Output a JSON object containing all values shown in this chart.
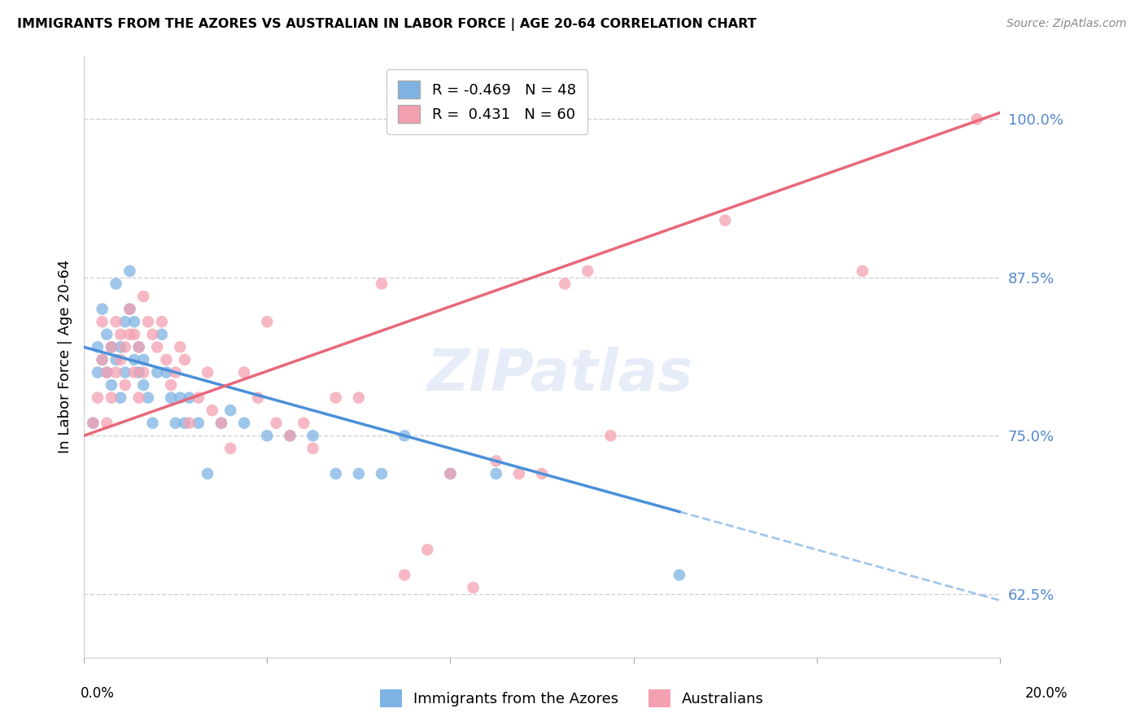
{
  "title": "IMMIGRANTS FROM THE AZORES VS AUSTRALIAN IN LABOR FORCE | AGE 20-64 CORRELATION CHART",
  "source": "Source: ZipAtlas.com",
  "ylabel_label": "In Labor Force | Age 20-64",
  "yticks": [
    0.625,
    0.75,
    0.875,
    1.0
  ],
  "ytick_labels": [
    "62.5%",
    "75.0%",
    "87.5%",
    "100.0%"
  ],
  "xlim": [
    0.0,
    0.2
  ],
  "ylim": [
    0.575,
    1.05
  ],
  "blue_R": -0.469,
  "blue_N": 48,
  "pink_R": 0.431,
  "pink_N": 60,
  "blue_color": "#7eb3e3",
  "pink_color": "#f4a0b0",
  "blue_line_color": "#4a90d9",
  "pink_line_color": "#e8687a",
  "legend_label_blue": "Immigrants from the Azores",
  "legend_label_pink": "Australians",
  "watermark": "ZIPatlas",
  "blue_line_x0": 0.0,
  "blue_line_y0": 0.82,
  "blue_line_x1": 0.13,
  "blue_line_y1": 0.69,
  "pink_line_x0": 0.0,
  "pink_line_y0": 0.75,
  "pink_line_x1": 0.2,
  "pink_line_y1": 1.005,
  "blue_scatter_x": [
    0.002,
    0.003,
    0.003,
    0.004,
    0.004,
    0.005,
    0.005,
    0.006,
    0.006,
    0.007,
    0.007,
    0.008,
    0.008,
    0.009,
    0.009,
    0.01,
    0.01,
    0.011,
    0.011,
    0.012,
    0.012,
    0.013,
    0.013,
    0.014,
    0.015,
    0.016,
    0.017,
    0.018,
    0.019,
    0.02,
    0.021,
    0.022,
    0.023,
    0.025,
    0.027,
    0.03,
    0.032,
    0.035,
    0.04,
    0.045,
    0.05,
    0.055,
    0.06,
    0.065,
    0.07,
    0.08,
    0.09,
    0.13
  ],
  "blue_scatter_y": [
    0.76,
    0.8,
    0.82,
    0.81,
    0.85,
    0.8,
    0.83,
    0.79,
    0.82,
    0.81,
    0.87,
    0.78,
    0.82,
    0.8,
    0.84,
    0.85,
    0.88,
    0.84,
    0.81,
    0.8,
    0.82,
    0.79,
    0.81,
    0.78,
    0.76,
    0.8,
    0.83,
    0.8,
    0.78,
    0.76,
    0.78,
    0.76,
    0.78,
    0.76,
    0.72,
    0.76,
    0.77,
    0.76,
    0.75,
    0.75,
    0.75,
    0.72,
    0.72,
    0.72,
    0.75,
    0.72,
    0.72,
    0.64
  ],
  "pink_scatter_x": [
    0.002,
    0.003,
    0.004,
    0.004,
    0.005,
    0.005,
    0.006,
    0.006,
    0.007,
    0.007,
    0.008,
    0.008,
    0.009,
    0.009,
    0.01,
    0.01,
    0.011,
    0.011,
    0.012,
    0.012,
    0.013,
    0.013,
    0.014,
    0.015,
    0.016,
    0.017,
    0.018,
    0.019,
    0.02,
    0.021,
    0.022,
    0.023,
    0.025,
    0.027,
    0.028,
    0.03,
    0.032,
    0.035,
    0.038,
    0.04,
    0.042,
    0.045,
    0.048,
    0.05,
    0.055,
    0.06,
    0.065,
    0.07,
    0.075,
    0.08,
    0.085,
    0.09,
    0.095,
    0.1,
    0.105,
    0.11,
    0.115,
    0.14,
    0.17,
    0.195
  ],
  "pink_scatter_y": [
    0.76,
    0.78,
    0.81,
    0.84,
    0.76,
    0.8,
    0.82,
    0.78,
    0.8,
    0.84,
    0.81,
    0.83,
    0.79,
    0.82,
    0.85,
    0.83,
    0.8,
    0.83,
    0.82,
    0.78,
    0.8,
    0.86,
    0.84,
    0.83,
    0.82,
    0.84,
    0.81,
    0.79,
    0.8,
    0.82,
    0.81,
    0.76,
    0.78,
    0.8,
    0.77,
    0.76,
    0.74,
    0.8,
    0.78,
    0.84,
    0.76,
    0.75,
    0.76,
    0.74,
    0.78,
    0.78,
    0.87,
    0.64,
    0.66,
    0.72,
    0.63,
    0.73,
    0.72,
    0.72,
    0.87,
    0.88,
    0.75,
    0.92,
    0.88,
    1.0
  ]
}
